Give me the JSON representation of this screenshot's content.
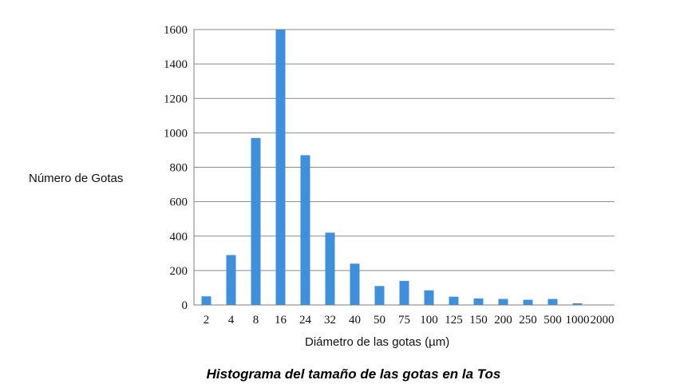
{
  "chart_data": {
    "type": "bar",
    "title": "Histograma del tamaño de las gotas en la Tos",
    "xlabel": "Diámetro de las gotas  (µm)",
    "ylabel": "Número de Gotas",
    "categories": [
      "2",
      "4",
      "8",
      "16",
      "24",
      "32",
      "40",
      "50",
      "75",
      "100",
      "125",
      "150",
      "200",
      "250",
      "500",
      "1000",
      "2000"
    ],
    "values": [
      50,
      290,
      970,
      1600,
      870,
      420,
      240,
      110,
      140,
      85,
      48,
      38,
      35,
      30,
      35,
      10,
      0
    ],
    "ylim": [
      0,
      1600
    ],
    "yticks": [
      0,
      200,
      400,
      600,
      800,
      1000,
      1200,
      1400,
      1600
    ],
    "grid": true,
    "bar_color": "#3f8fdb",
    "grid_color": "#8a8a8a"
  }
}
